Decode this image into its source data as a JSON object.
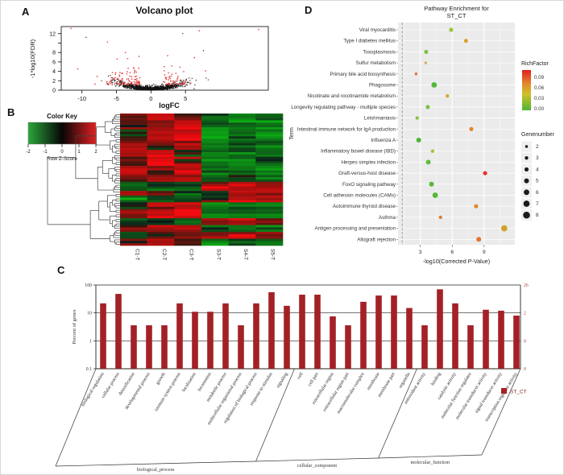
{
  "figure": {
    "panel_labels": {
      "A": "A",
      "B": "B",
      "C": "C",
      "D": "D"
    }
  },
  "chart_data": [
    {
      "id": "volcano",
      "type": "scatter",
      "panel": "A",
      "title": "Volcano plot",
      "xlabel": "logFC",
      "ylabel": "-1*log10(FDR)",
      "xlim": [
        -13,
        17
      ],
      "ylim": [
        0,
        13.5
      ],
      "xticks": [
        -10,
        -5,
        0,
        5
      ],
      "yticks": [
        0,
        2,
        4,
        6,
        8,
        10,
        12
      ],
      "ytick_labels": [
        "0",
        "2",
        "4",
        "6",
        "8",
        "",
        "12"
      ],
      "point_colors": {
        "normal": "#141414",
        "significant": "#e23b3b"
      },
      "generator": {
        "seed": 20240601,
        "n_normal": 1150,
        "x_sigma": 2.35,
        "curve": 0.085,
        "y_noise": 0.38,
        "n_significant": 155,
        "sig_neg_fraction": 0.62,
        "sig_y_min": 1.3,
        "sig_y_scale": 1.15
      },
      "outlier_points": [
        [
          -11.6,
          13.1,
          "s"
        ],
        [
          -9.4,
          11.2,
          "n"
        ],
        [
          -6.3,
          10.2,
          "s"
        ],
        [
          -4.9,
          6.6,
          "s"
        ],
        [
          -3.7,
          8.0,
          "s"
        ],
        [
          4.6,
          12.0,
          "n"
        ],
        [
          7.0,
          12.6,
          "s"
        ],
        [
          7.6,
          8.4,
          "n"
        ],
        [
          6.3,
          6.9,
          "s"
        ],
        [
          15.6,
          12.9,
          "s"
        ],
        [
          7.9,
          4.1,
          "s"
        ],
        [
          -10.6,
          4.5,
          "s"
        ],
        [
          -7.8,
          2.9,
          "s"
        ],
        [
          8.3,
          2.2,
          "s"
        ]
      ]
    },
    {
      "id": "deg_heatmap",
      "type": "heatmap",
      "panel": "B",
      "color_key": {
        "title": "Color Key",
        "axis_label": "Row Z-Score",
        "ticks": [
          -2,
          -1,
          0,
          1,
          2
        ],
        "gradient_stops": [
          "#2ba63a",
          "#060606",
          "#df2020"
        ]
      },
      "columns": [
        "C1-T",
        "C2-T",
        "C3-T",
        "S3-T",
        "S4-T",
        "S5-T"
      ],
      "zlim": [
        -2,
        2
      ],
      "seed": 31,
      "cell_noise": 0.38,
      "row_segments": [
        {
          "n": 3,
          "means": [
            0.6,
            1.2,
            0.4,
            -1.0,
            -1.2,
            -0.9
          ]
        },
        {
          "n": 4,
          "means": [
            0.2,
            0.7,
            1.8,
            -1.2,
            -1.0,
            -1.1
          ]
        },
        {
          "n": 5,
          "means": [
            -0.2,
            1.5,
            1.9,
            -1.4,
            -1.2,
            -1.3
          ]
        },
        {
          "n": 4,
          "means": [
            0.9,
            0.4,
            1.2,
            -1.0,
            -0.8,
            -1.1
          ]
        },
        {
          "n": 3,
          "means": [
            1.2,
            1.7,
            0.2,
            -1.2,
            -1.0,
            -0.9
          ]
        },
        {
          "n": 4,
          "means": [
            0.3,
            1.8,
            0.5,
            -1.1,
            -1.3,
            -1.0
          ]
        },
        {
          "n": 4,
          "means": [
            1.0,
            0.5,
            1.7,
            -1.0,
            -1.1,
            -1.2
          ]
        },
        {
          "n": 3,
          "means": [
            0.6,
            1.2,
            0.9,
            -0.6,
            -0.5,
            -0.7
          ]
        },
        {
          "n": 4,
          "means": [
            -0.8,
            -0.5,
            -0.9,
            0.9,
            1.3,
            1.0
          ]
        },
        {
          "n": 2,
          "means": [
            1.5,
            0.3,
            -0.5,
            -0.3,
            1.2,
            0.8
          ]
        },
        {
          "n": 3,
          "means": [
            -0.9,
            -0.7,
            -0.6,
            0.5,
            1.4,
            1.1
          ]
        },
        {
          "n": 3,
          "means": [
            0.4,
            1.1,
            1.6,
            -1.2,
            -1.0,
            -1.1
          ]
        },
        {
          "n": 4,
          "means": [
            0.9,
            1.4,
            1.8,
            -1.3,
            -1.1,
            -1.2
          ]
        },
        {
          "n": 3,
          "means": [
            -0.7,
            -0.4,
            -0.8,
            0.7,
            1.2,
            0.4
          ]
        },
        {
          "n": 3,
          "means": [
            0.5,
            0.9,
            1.2,
            -1.0,
            -0.9,
            -1.1
          ]
        },
        {
          "n": 3,
          "means": [
            -0.5,
            0.3,
            0.6,
            1.1,
            1.5,
            0.9
          ]
        },
        {
          "n": 3,
          "means": [
            0.8,
            1.1,
            0.5,
            -1.2,
            -0.8,
            -1.0
          ]
        }
      ]
    },
    {
      "id": "go_annotation",
      "type": "bar",
      "panel": "C",
      "ylabel_left": "Percent of genes",
      "yticks_left": [
        "100",
        "10",
        "1",
        "0.1"
      ],
      "yticks_right": [
        "26",
        "2",
        "0",
        "0"
      ],
      "bar_color": "#a32126",
      "legend": {
        "label": "ST_CT",
        "color": "#a32126"
      },
      "groups": [
        {
          "name": "biological_process",
          "categories": [
            "biological regulation",
            "cellular process",
            "detoxification",
            "developmental process",
            "growth",
            "immune system process",
            "localization",
            "locomotion",
            "metabolic process",
            "multicellular organismal process",
            "regulation of biological process",
            "response to stimulus",
            "signaling"
          ],
          "values": [
            22,
            48,
            3.6,
            3.6,
            3.6,
            22,
            11,
            11,
            22,
            3.6,
            22,
            55,
            18
          ]
        },
        {
          "name": "cellular_component",
          "categories": [
            "cell",
            "cell part",
            "extracellular region",
            "extracellular region part",
            "macromolecular complex",
            "membrane",
            "membrane part",
            "organelle"
          ],
          "values": [
            45,
            45,
            7.5,
            3.6,
            25,
            42,
            42,
            15
          ]
        },
        {
          "name": "molecular_function",
          "categories": [
            "antioxidant activity",
            "binding",
            "catalytic activity",
            "molecular function regulator",
            "molecular transducer activity",
            "signal transducer activity",
            "transcription regulator activity"
          ],
          "values": [
            3.6,
            70,
            22,
            3.6,
            13,
            12,
            8
          ]
        }
      ]
    },
    {
      "id": "pathway_enrichment",
      "type": "scatter",
      "panel": "D",
      "title_lines": [
        "Pathway Enrichment for",
        "ST_CT"
      ],
      "xlabel": "-log10(Corrected P-Value)",
      "ylabel": "Term",
      "xticks": [
        3,
        6,
        9
      ],
      "xlim": [
        0.9,
        11.9
      ],
      "threshold_line_x": 1.3,
      "legend_richfactor": {
        "title": "RichFactor",
        "ticks": [
          "0.09",
          "0.06",
          "0.03",
          "0.00"
        ],
        "gradient": [
          "#e01f1f",
          "#e2862e",
          "#cfc028",
          "#4eb534"
        ]
      },
      "legend_genenumber": {
        "title": "Genenumber",
        "sizes": [
          2,
          3,
          4,
          5,
          6,
          7,
          8
        ]
      },
      "points": [
        {
          "term": "Viral myocarditis",
          "x": 5.9,
          "genenumber": 4,
          "color": "#9ec33b"
        },
        {
          "term": "Type I diabetes mellitus",
          "x": 7.3,
          "genenumber": 4,
          "color": "#d8a438"
        },
        {
          "term": "Toxoplasmosis",
          "x": 3.55,
          "genenumber": 4,
          "color": "#7dc243"
        },
        {
          "term": "Sulfur metabolism",
          "x": 3.5,
          "genenumber": 2,
          "color": "#d8b06a"
        },
        {
          "term": "Primary bile acid biosynthesis",
          "x": 2.6,
          "genenumber": 2,
          "color": "#e2703f"
        },
        {
          "term": "Phagosome",
          "x": 4.3,
          "genenumber": 6,
          "color": "#53b83a"
        },
        {
          "term": "Nicotinate and nicotinamide metabolism",
          "x": 5.55,
          "genenumber": 3,
          "color": "#d8a438"
        },
        {
          "term": "Longevity regulating pathway - multiple species",
          "x": 3.7,
          "genenumber": 4,
          "color": "#7dc243"
        },
        {
          "term": "Leishmaniasis",
          "x": 2.7,
          "genenumber": 3,
          "color": "#8bc23f"
        },
        {
          "term": "Intestinal immune network for IgA production",
          "x": 7.8,
          "genenumber": 4,
          "color": "#e2862e"
        },
        {
          "term": "Influenza A",
          "x": 2.85,
          "genenumber": 5,
          "color": "#4eb534"
        },
        {
          "term": "Inflammatory bowel disease (IBD)",
          "x": 4.15,
          "genenumber": 3,
          "color": "#a8c43b"
        },
        {
          "term": "Herpes simplex infection",
          "x": 3.75,
          "genenumber": 5,
          "color": "#63bb3c"
        },
        {
          "term": "Graft-versus-host disease",
          "x": 9.1,
          "genenumber": 4,
          "color": "#e53228"
        },
        {
          "term": "FoxO signaling pathway",
          "x": 4.05,
          "genenumber": 5,
          "color": "#58b838"
        },
        {
          "term": "Cell adhesion molecules (CAMs)",
          "x": 4.4,
          "genenumber": 6,
          "color": "#58b838"
        },
        {
          "term": "Autoimmune thyroid disease",
          "x": 8.25,
          "genenumber": 4,
          "color": "#e2862e"
        },
        {
          "term": "Asthma",
          "x": 4.9,
          "genenumber": 3,
          "color": "#e07b35"
        },
        {
          "term": "Antigen processing and presentation",
          "x": 10.9,
          "genenumber": 7,
          "color": "#d2a22a"
        },
        {
          "term": "Allograft rejection",
          "x": 8.5,
          "genenumber": 5,
          "color": "#e2762e"
        }
      ]
    }
  ]
}
